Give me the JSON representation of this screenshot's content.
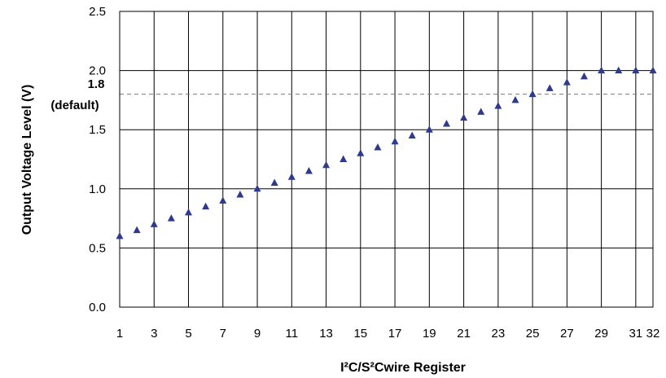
{
  "chart_data": {
    "type": "scatter",
    "title": "",
    "xlabel": "I²C/S²Cwire Register",
    "ylabel": "Output Voltage Level (V)",
    "xlim": [
      1,
      32
    ],
    "ylim": [
      0.0,
      2.5
    ],
    "grid": true,
    "x_tick_labels": [
      "1",
      "3",
      "5",
      "7",
      "9",
      "11",
      "13",
      "15",
      "17",
      "19",
      "21",
      "23",
      "25",
      "27",
      "29",
      "31",
      "32"
    ],
    "y_tick_labels": [
      "0.0",
      "0.5",
      "1.0",
      "1.5",
      "2.0",
      "2.5"
    ],
    "reference_line": {
      "value": 1.8,
      "label_value": "1.8",
      "label_note": "(default)",
      "style": "dashed"
    },
    "marker_color": "#2e3a8c",
    "series": [
      {
        "x": [
          1,
          2,
          3,
          4,
          5,
          6,
          7,
          8,
          9,
          10,
          11,
          12,
          13,
          14,
          15,
          16,
          17,
          18,
          19,
          20,
          21,
          22,
          23,
          24,
          25,
          26,
          27,
          28,
          29,
          30,
          31,
          32
        ],
        "y": [
          0.6,
          0.65,
          0.7,
          0.75,
          0.8,
          0.85,
          0.9,
          0.95,
          1.0,
          1.05,
          1.1,
          1.15,
          1.2,
          1.25,
          1.3,
          1.35,
          1.4,
          1.45,
          1.5,
          1.55,
          1.6,
          1.65,
          1.7,
          1.75,
          1.8,
          1.85,
          1.9,
          1.95,
          2.0,
          2.0,
          2.0,
          2.0
        ]
      }
    ]
  }
}
